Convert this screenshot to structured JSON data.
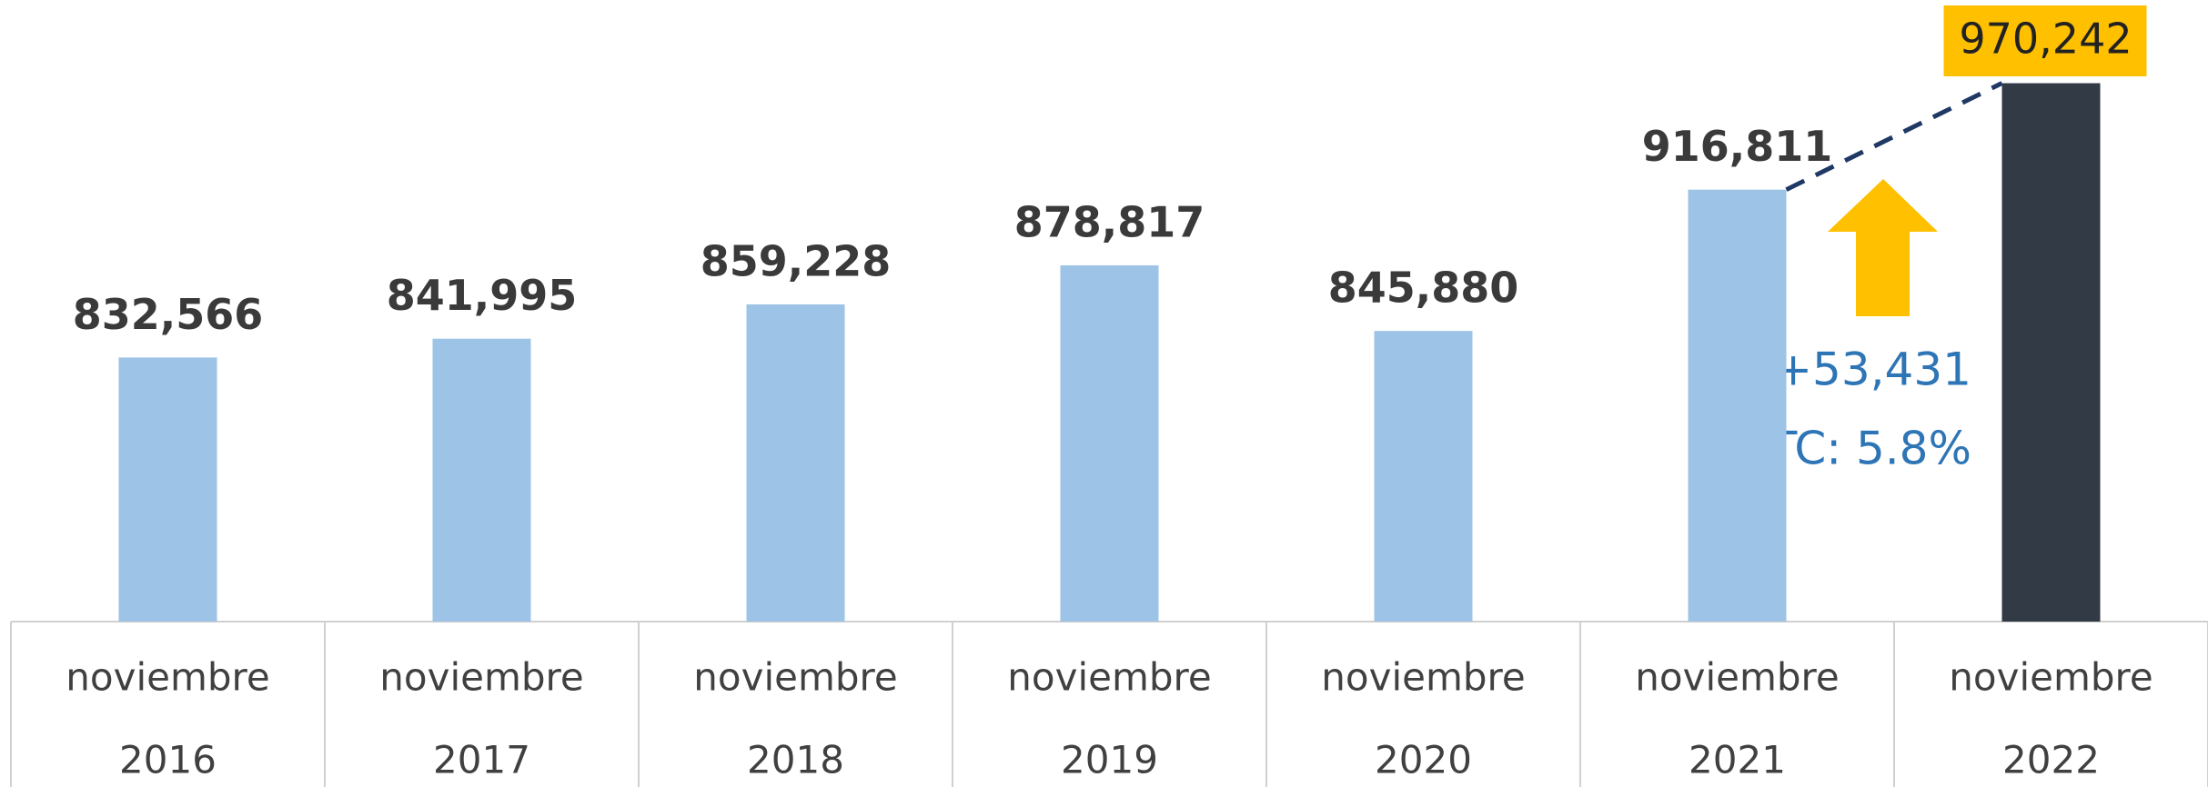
{
  "chart_data": {
    "type": "bar",
    "categories": [
      [
        "noviembre",
        "2016"
      ],
      [
        "noviembre",
        "2017"
      ],
      [
        "noviembre",
        "2018"
      ],
      [
        "noviembre",
        "2019"
      ],
      [
        "noviembre",
        "2020"
      ],
      [
        "noviembre",
        "2021"
      ],
      [
        "noviembre",
        "2022"
      ]
    ],
    "values": [
      832566,
      841995,
      859228,
      878817,
      845880,
      916811,
      970242
    ],
    "value_labels": [
      "832,566",
      "841,995",
      "859,228",
      "878,817",
      "845,880",
      "916,811",
      "970,242"
    ],
    "colors": [
      "#9dc3e6",
      "#9dc3e6",
      "#9dc3e6",
      "#9dc3e6",
      "#9dc3e6",
      "#9dc3e6",
      "#323a45"
    ],
    "ylim": [
      700000,
      1012000
    ],
    "annotations": {
      "increase": "+53,431",
      "growth": "TC: 5.8%"
    }
  }
}
